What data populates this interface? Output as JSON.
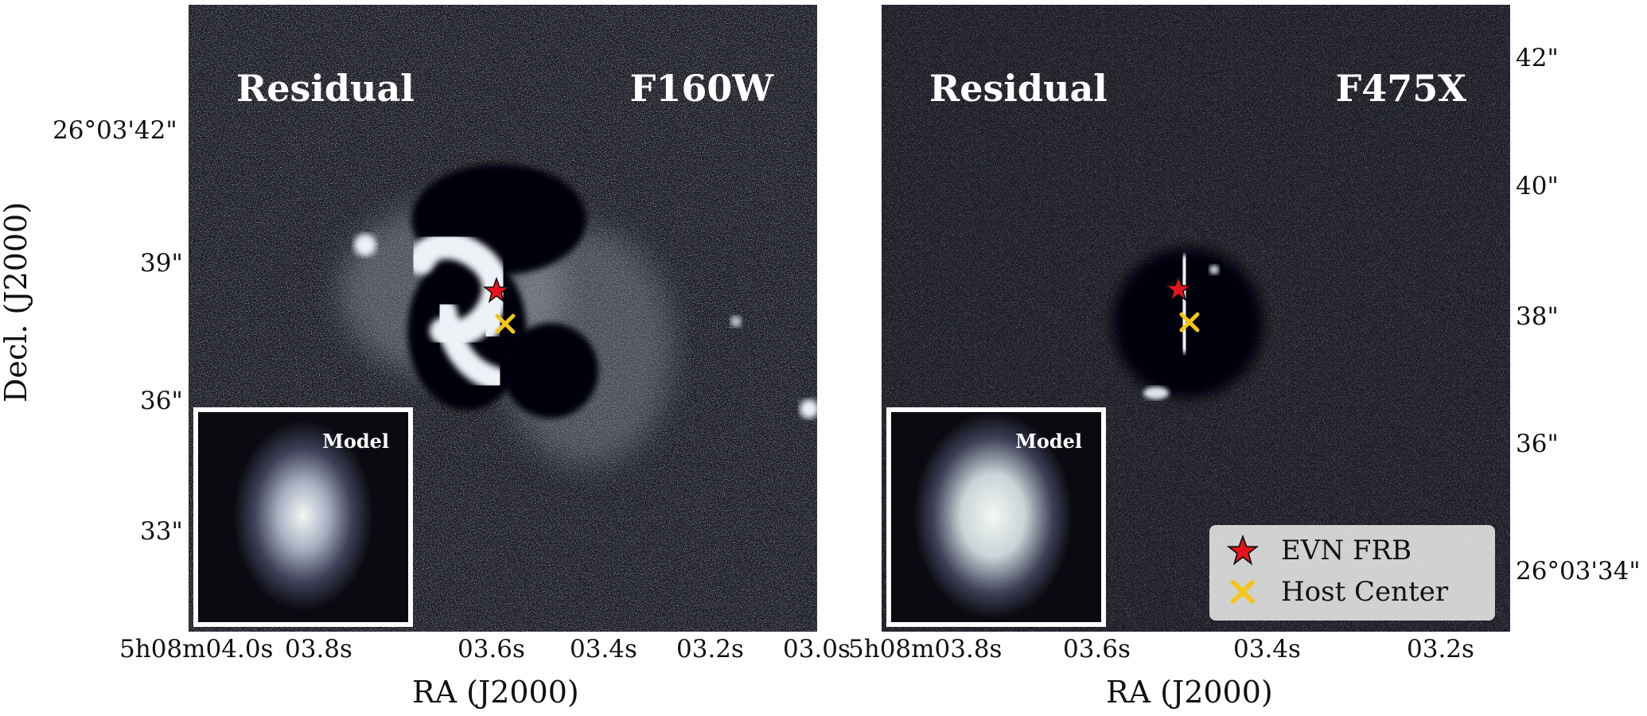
{
  "figure": {
    "y_axis_title": "Decl. (J2000)",
    "x_axis_title": "RA (J2000)",
    "panels": [
      {
        "residual_label": "Residual",
        "band": "F160W",
        "inset_label": "Model",
        "x_ticks": [
          "5h08m04.0s",
          "03.8s",
          "03.6s",
          "03.4s",
          "03.2s",
          "03.0s"
        ],
        "y_ticks": [
          "26°03'42\"",
          "39\"",
          "36\"",
          "33\""
        ]
      },
      {
        "residual_label": "Residual",
        "band": "F475X",
        "inset_label": "Model",
        "x_ticks": [
          "5h08m03.8s",
          "03.6s",
          "03.4s",
          "03.2s"
        ],
        "y_ticks": [
          "42\"",
          "40\"",
          "38\"",
          "36\"",
          "26°03'34\""
        ]
      }
    ],
    "legend": {
      "items": [
        {
          "label": "EVN FRB",
          "marker": "star-icon",
          "color": "#e8141c"
        },
        {
          "label": "Host Center",
          "marker": "x-icon",
          "color": "#f5c518"
        }
      ]
    },
    "colors": {
      "background": "#1b1c23",
      "residual": "#eef2f6"
    }
  }
}
